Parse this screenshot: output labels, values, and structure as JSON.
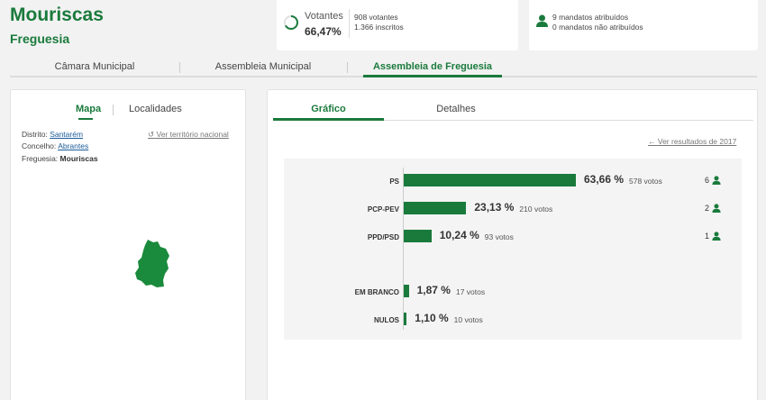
{
  "header": {
    "title": "Mouriscas",
    "subtitle": "Freguesia"
  },
  "stats": {
    "votantes_label": "Votantes",
    "votantes_pct": "66,47%",
    "votantes_fraction": 0.6647,
    "voters_line": "908 votantes",
    "registered_line": "1.366 inscritos"
  },
  "mandates": {
    "attributed": "9 mandatos atribuídos",
    "not_attributed": "0 mandatos não atribuídos"
  },
  "tabs": [
    {
      "label": "Câmara Municipal"
    },
    {
      "label": "Assembleia Municipal"
    },
    {
      "label": "Assembleia de Freguesia"
    }
  ],
  "left": {
    "tab_map": "Mapa",
    "tab_localities": "Localidades",
    "distrito_label": "Distrito:",
    "distrito_value": "Santarém",
    "concelho_label": "Concelho:",
    "concelho_value": "Abrantes",
    "freguesia_label": "Freguesia:",
    "freguesia_value": "Mouriscas",
    "national_link": "Ver território nacional"
  },
  "right": {
    "tab_chart": "Gráfico",
    "tab_details": "Detalhes",
    "prev_results_link": "Ver resultados de 2017"
  },
  "colors": {
    "accent": "#1a7a3c"
  },
  "chart_data": {
    "type": "bar",
    "categories": [
      "PS",
      "PCP-PEV",
      "PPD/PSD",
      "EM BRANCO",
      "NULOS"
    ],
    "values": [
      63.66,
      23.13,
      10.24,
      1.87,
      1.1
    ],
    "pct_labels": [
      "63,66 %",
      "23,13 %",
      "10,24 %",
      "1,87 %",
      "1,10 %"
    ],
    "votes_labels": [
      "578 votos",
      "210 votos",
      "93 votos",
      "17 votos",
      "10 votos"
    ],
    "seats": [
      "6",
      "2",
      "1"
    ]
  }
}
